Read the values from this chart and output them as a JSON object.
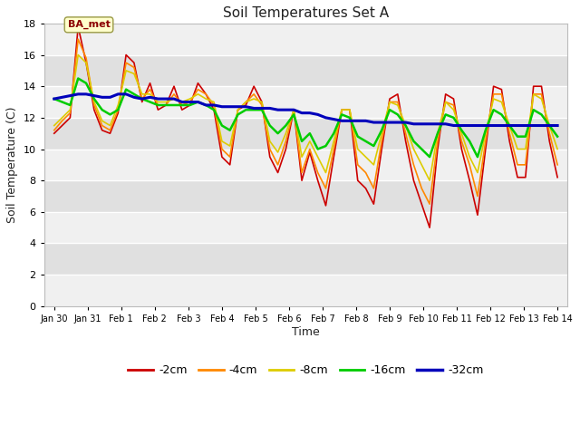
{
  "title": "Soil Temperatures Set A",
  "xlabel": "Time",
  "ylabel": "Soil Temperature (C)",
  "ylim": [
    0,
    18
  ],
  "yticks": [
    0,
    2,
    4,
    6,
    8,
    10,
    12,
    14,
    16,
    18
  ],
  "annotation_text": "BA_met",
  "colors": {
    "-2cm": "#cc0000",
    "-4cm": "#ff8800",
    "-8cm": "#ddcc00",
    "-16cm": "#00cc00",
    "-32cm": "#0000bb"
  },
  "x_labels": [
    "Jan 30",
    "Jan 31",
    "Feb 1",
    "Feb 2",
    "Feb 3",
    "Feb 4",
    "Feb 5",
    "Feb 6",
    "Feb 7",
    "Feb 8",
    "Feb 9",
    "Feb 10",
    "Feb 11",
    "Feb 12",
    "Feb 13",
    "Feb 14"
  ],
  "x_positions": [
    0,
    1,
    2,
    3,
    4,
    5,
    6,
    7,
    8,
    9,
    10,
    11,
    12,
    13,
    14,
    15
  ],
  "series": {
    "-2cm": [
      11.0,
      11.5,
      12.0,
      17.8,
      15.5,
      12.5,
      11.2,
      11.0,
      12.3,
      16.0,
      15.5,
      13.0,
      14.2,
      12.5,
      12.8,
      14.0,
      12.5,
      12.8,
      14.2,
      13.5,
      12.5,
      9.5,
      9.0,
      12.5,
      12.8,
      14.0,
      13.0,
      9.5,
      8.5,
      10.0,
      12.5,
      8.0,
      9.8,
      8.0,
      6.4,
      9.5,
      12.5,
      12.5,
      8.0,
      7.5,
      6.5,
      10.0,
      13.2,
      13.5,
      10.5,
      8.0,
      6.5,
      5.0,
      10.0,
      13.5,
      13.2,
      10.0,
      8.0,
      5.8,
      10.0,
      14.0,
      13.8,
      10.5,
      8.2,
      8.2,
      14.0,
      14.0,
      10.5,
      8.2
    ],
    "-4cm": [
      11.2,
      11.8,
      12.3,
      17.0,
      15.8,
      12.8,
      11.5,
      11.2,
      12.5,
      15.5,
      15.2,
      13.2,
      13.8,
      12.8,
      12.8,
      13.5,
      12.8,
      13.0,
      13.8,
      13.5,
      12.8,
      10.0,
      9.5,
      12.5,
      13.0,
      13.5,
      12.8,
      10.0,
      9.0,
      10.5,
      12.5,
      8.5,
      10.0,
      8.5,
      7.5,
      10.0,
      12.5,
      12.5,
      9.0,
      8.5,
      7.5,
      10.5,
      13.0,
      13.0,
      11.0,
      9.0,
      7.5,
      6.5,
      10.5,
      13.0,
      12.8,
      10.5,
      9.0,
      7.0,
      10.5,
      13.5,
      13.5,
      11.0,
      9.0,
      9.0,
      13.5,
      13.5,
      11.0,
      9.0
    ],
    "-8cm": [
      11.5,
      12.0,
      12.5,
      16.0,
      15.5,
      13.0,
      11.8,
      11.5,
      12.8,
      15.0,
      14.8,
      13.5,
      13.5,
      13.0,
      13.0,
      13.2,
      13.0,
      13.2,
      13.5,
      13.2,
      13.0,
      10.5,
      10.2,
      12.5,
      13.0,
      13.2,
      13.0,
      10.5,
      9.8,
      11.0,
      12.5,
      9.5,
      10.5,
      9.5,
      8.5,
      10.5,
      12.5,
      12.5,
      10.0,
      9.5,
      9.0,
      11.0,
      13.0,
      12.8,
      11.5,
      10.0,
      9.0,
      8.0,
      11.0,
      13.0,
      12.5,
      11.0,
      9.5,
      8.5,
      11.0,
      13.2,
      13.0,
      11.5,
      10.0,
      10.0,
      13.5,
      13.2,
      11.5,
      10.0
    ],
    "-16cm": [
      13.2,
      13.0,
      12.8,
      14.5,
      14.2,
      13.2,
      12.5,
      12.2,
      12.5,
      13.8,
      13.5,
      13.2,
      13.0,
      12.8,
      12.8,
      12.8,
      12.8,
      12.8,
      13.0,
      12.8,
      12.5,
      11.5,
      11.2,
      12.2,
      12.5,
      12.5,
      12.5,
      11.5,
      11.0,
      11.5,
      12.2,
      10.5,
      11.0,
      10.0,
      10.2,
      11.0,
      12.2,
      12.0,
      10.8,
      10.5,
      10.2,
      11.2,
      12.5,
      12.2,
      11.5,
      10.5,
      10.0,
      9.5,
      11.0,
      12.2,
      12.0,
      11.2,
      10.5,
      9.5,
      11.2,
      12.5,
      12.2,
      11.5,
      10.8,
      10.8,
      12.5,
      12.2,
      11.5,
      10.8
    ],
    "-32cm": [
      13.2,
      13.3,
      13.4,
      13.5,
      13.5,
      13.4,
      13.3,
      13.3,
      13.5,
      13.5,
      13.3,
      13.2,
      13.3,
      13.2,
      13.2,
      13.2,
      13.0,
      13.0,
      13.0,
      12.8,
      12.8,
      12.7,
      12.7,
      12.7,
      12.7,
      12.6,
      12.6,
      12.6,
      12.5,
      12.5,
      12.5,
      12.3,
      12.3,
      12.2,
      12.0,
      11.9,
      11.8,
      11.8,
      11.8,
      11.8,
      11.7,
      11.7,
      11.7,
      11.7,
      11.7,
      11.6,
      11.6,
      11.6,
      11.6,
      11.6,
      11.5,
      11.5,
      11.5,
      11.5,
      11.5,
      11.5,
      11.5,
      11.5,
      11.5,
      11.5,
      11.5,
      11.5,
      11.5,
      11.5
    ]
  },
  "bg_color": "#ffffff",
  "plot_bg_color_light": "#f0f0f0",
  "plot_bg_color_dark": "#e0e0e0",
  "grid_color": "#ffffff",
  "line_widths": {
    "-2cm": 1.2,
    "-4cm": 1.2,
    "-8cm": 1.2,
    "-16cm": 1.8,
    "-32cm": 2.2
  }
}
